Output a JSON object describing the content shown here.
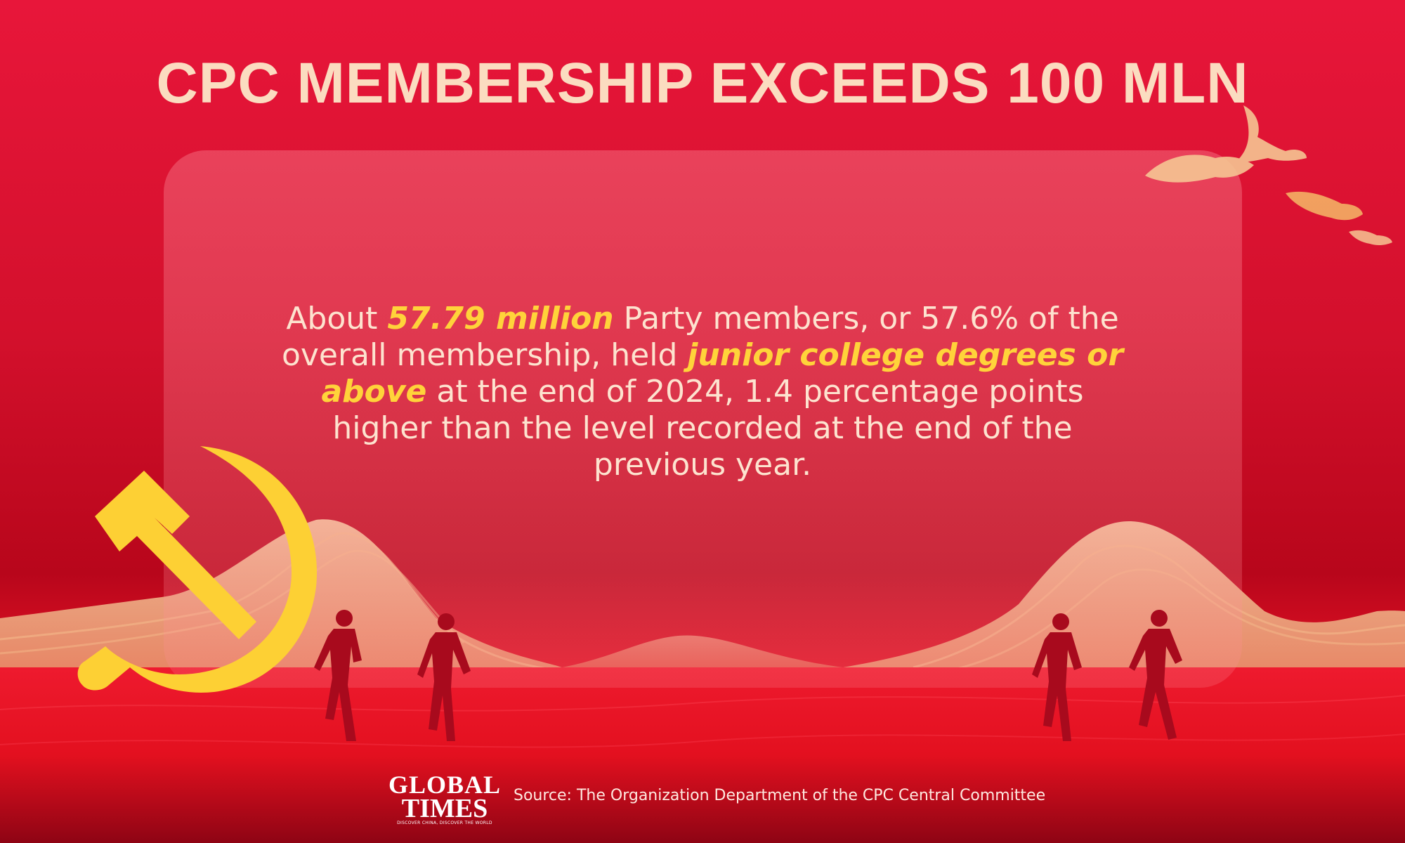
{
  "title": "CPC MEMBERSHIP EXCEEDS 100 MLN",
  "body": {
    "seg1": "About ",
    "hl1": "57.79 million",
    "seg2": " Party members, or 57.6% of the overall membership, held ",
    "hl2": "junior college degrees or above",
    "seg3": " at the end of 2024, 1.4 percentage points higher than the level recorded at the end of the previous year."
  },
  "logo": {
    "line1": "GLOBAL",
    "line2": "TIMES",
    "tagline": "DISCOVER CHINA, DISCOVER THE WORLD"
  },
  "source": "Source: The Organization Department of the CPC Central Committee",
  "colors": {
    "title": "#fbdcc0",
    "body_text": "#fde3cf",
    "highlight": "#ffd33a",
    "emblem": "#fdd034",
    "hills": "#f6cf9c",
    "runner": "#a80a1d",
    "logo_text": "#ffffff",
    "source_text": "#ffe9e0"
  },
  "icons": [
    "hammer-and-sickle-icon",
    "bird-icon",
    "runner-silhouette-icon",
    "global-times-logo"
  ]
}
